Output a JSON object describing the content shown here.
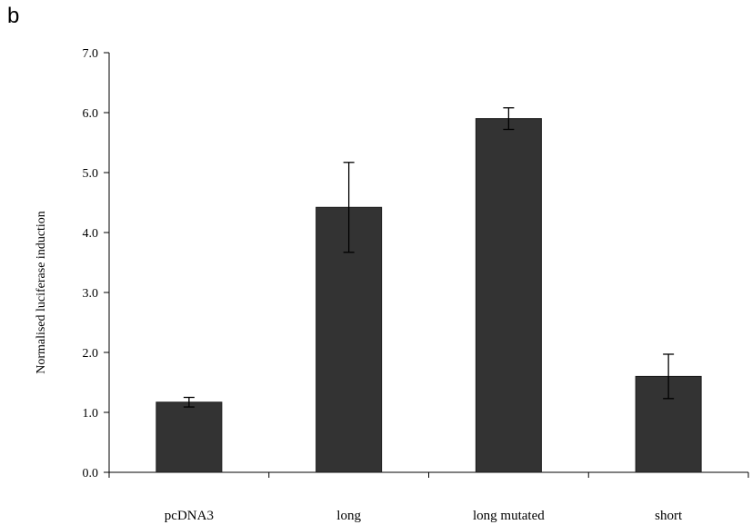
{
  "panel_label": "b",
  "chart_data": {
    "type": "bar",
    "title": "",
    "xlabel": "",
    "ylabel": "Normalised luciferase induction",
    "categories": [
      "pcDNA3",
      "long",
      "long mutated",
      "short"
    ],
    "values": [
      1.17,
      4.42,
      5.9,
      1.6
    ],
    "errors": [
      0.08,
      0.75,
      0.18,
      0.37
    ],
    "ylim": [
      0,
      7
    ],
    "yticks": [
      0,
      1,
      2,
      3,
      4,
      5,
      6,
      7
    ],
    "ytick_labels": [
      "0.0",
      "1.0",
      "2.0",
      "3.0",
      "4.0",
      "5.0",
      "6.0",
      "7.0"
    ],
    "bar_color": "#333333",
    "grid": false,
    "legend": "none"
  }
}
